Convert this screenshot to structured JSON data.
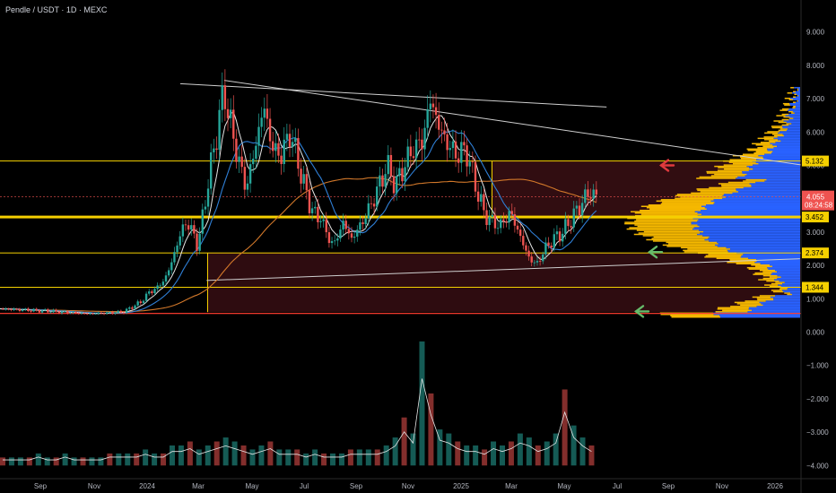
{
  "header": {
    "title": "Pendle / USDT · 1D · MEXC"
  },
  "colors": {
    "background": "#000000",
    "candle_up": "#26a69a",
    "candle_down": "#ef5350",
    "level_line": "#f5d000",
    "ma_white": "#e6e6e6",
    "ma_blue": "#2f7fd6",
    "ma_orange": "#d2782a",
    "profile_blue": "#2962ff",
    "profile_gold": "#f5b800",
    "zone_fill": "#3a0f14",
    "arrow_red": "#e03a3e",
    "arrow_green": "#66bb6a"
  },
  "chart_data": {
    "type": "candlestick",
    "symbol": "Pendle / USDT",
    "interval": "1D",
    "exchange": "MEXC",
    "x_ticks": [
      "Sep",
      "Nov",
      "2024",
      "Mar",
      "May",
      "Jul",
      "Sep",
      "Nov",
      "2025",
      "Mar",
      "May",
      "Jul",
      "Sep",
      "Nov",
      "2026"
    ],
    "y_ticks": [
      "9.000",
      "8.000",
      "7.000",
      "6.000",
      "5.000",
      "4.000",
      "3.000",
      "2.000",
      "1.000",
      "0.000",
      "−1.000",
      "−2.000",
      "−3.000",
      "−4.000"
    ],
    "ylim": [
      -4.4,
      9.8
    ],
    "price_path": [
      [
        0,
        0.7
      ],
      [
        6,
        0.62
      ],
      [
        10,
        0.55
      ],
      [
        14,
        0.6
      ],
      [
        16,
        0.9
      ],
      [
        17,
        1.2
      ],
      [
        18,
        1.35
      ],
      [
        19,
        1.7
      ],
      [
        20,
        2.5
      ],
      [
        21,
        3.3
      ],
      [
        22,
        3.0
      ],
      [
        22.5,
        2.5
      ],
      [
        23,
        3.4
      ],
      [
        24,
        5.0
      ],
      [
        25,
        6.5
      ],
      [
        25.5,
        7.3
      ],
      [
        26,
        6.5
      ],
      [
        27,
        5.3
      ],
      [
        28,
        4.3
      ],
      [
        29,
        5.5
      ],
      [
        30,
        6.8
      ],
      [
        31,
        5.5
      ],
      [
        32,
        5.3
      ],
      [
        33,
        6.0
      ],
      [
        34,
        5.0
      ],
      [
        35,
        4.0
      ],
      [
        36,
        3.4
      ],
      [
        36.5,
        3.5
      ],
      [
        37,
        3.0
      ],
      [
        38,
        2.6
      ],
      [
        39,
        3.3
      ],
      [
        40,
        2.8
      ],
      [
        41,
        3.2
      ],
      [
        42,
        3.7
      ],
      [
        43,
        4.3
      ],
      [
        44,
        5.0
      ],
      [
        45,
        4.4
      ],
      [
        46,
        5.0
      ],
      [
        47,
        5.5
      ],
      [
        48,
        5.7
      ],
      [
        49,
        7.0
      ],
      [
        50,
        6.1
      ],
      [
        51,
        5.6
      ],
      [
        52,
        5.3
      ],
      [
        53,
        5.5
      ],
      [
        54,
        4.5
      ],
      [
        55,
        3.6
      ],
      [
        56,
        3.3
      ],
      [
        57,
        3.2
      ],
      [
        58,
        3.6
      ],
      [
        59,
        3.0
      ],
      [
        60,
        2.3
      ],
      [
        61,
        2.0
      ],
      [
        62,
        2.5
      ],
      [
        63,
        2.8
      ],
      [
        64,
        3.0
      ],
      [
        65,
        3.4
      ],
      [
        66,
        3.8
      ],
      [
        67,
        4.2
      ],
      [
        68,
        4.05
      ]
    ],
    "level_lines": [
      5.132,
      3.452,
      2.374,
      1.344,
      0.56
    ],
    "price_labels": [
      {
        "value": 5.132,
        "label": "5.132"
      },
      {
        "value": 3.452,
        "label": "3.452"
      },
      {
        "value": 2.374,
        "label": "2.374"
      },
      {
        "value": 1.344,
        "label": "1.344"
      }
    ],
    "current_price": {
      "value": 4.055,
      "label": "4.055",
      "countdown": "08:24:58"
    },
    "trendlines": [
      {
        "from": [
          20.5,
          7.45
        ],
        "to": [
          69,
          6.75
        ]
      },
      {
        "from": [
          25.5,
          7.55
        ],
        "to": [
          91.5,
          5.0
        ]
      },
      {
        "from": [
          23.5,
          1.55
        ],
        "to": [
          91,
          2.2
        ]
      }
    ],
    "volume_bars": [
      2,
      2,
      2,
      2,
      3,
      2,
      2,
      3,
      2,
      2,
      2,
      2,
      3,
      3,
      3,
      3,
      4,
      3,
      3,
      5,
      5,
      6,
      4,
      5,
      6,
      7,
      6,
      5,
      4,
      5,
      6,
      4,
      4,
      4,
      3,
      4,
      3,
      3,
      3,
      4,
      4,
      4,
      4,
      5,
      7,
      12,
      8,
      31,
      18,
      9,
      8,
      6,
      5,
      5,
      4,
      6,
      5,
      6,
      8,
      7,
      5,
      6,
      8,
      19,
      10,
      7,
      5
    ],
    "volume_baseline": -4.0,
    "volume_scale": 0.12
  }
}
